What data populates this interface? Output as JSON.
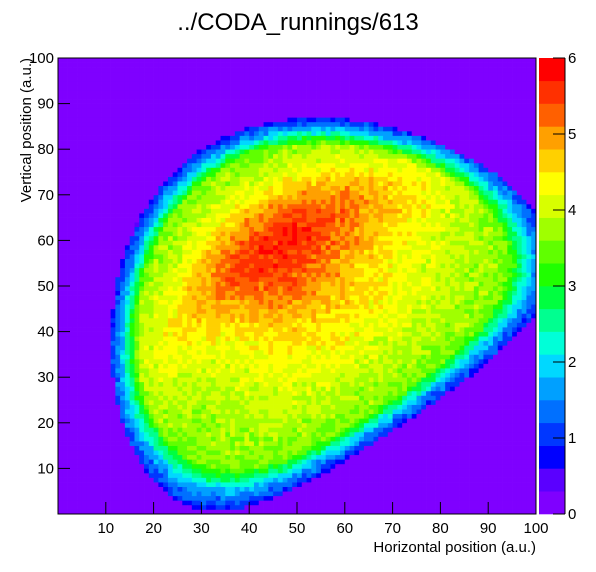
{
  "chart_data": {
    "type": "heatmap",
    "title": "../CODA_runnings/613",
    "xlabel": "Horizontal position (a.u.)",
    "ylabel": "Vertical position (a.u.)",
    "xlim": [
      0,
      100
    ],
    "ylim": [
      0,
      100
    ],
    "x_ticks": [
      10,
      20,
      30,
      40,
      50,
      60,
      70,
      80,
      90,
      100
    ],
    "y_ticks": [
      10,
      20,
      30,
      40,
      50,
      60,
      70,
      80,
      90,
      100
    ],
    "zlim": [
      0,
      6
    ],
    "z_ticks": [
      0,
      1,
      2,
      3,
      4,
      5,
      6
    ],
    "bins": [
      100,
      100
    ],
    "colorscale": [
      "#7f00ff",
      "#5a00ff",
      "#0000ff",
      "#0037ff",
      "#0070ff",
      "#00a0ff",
      "#00d8ff",
      "#00ffd8",
      "#00ff90",
      "#00ff40",
      "#20ff00",
      "#60ff00",
      "#a0ff00",
      "#d8ff00",
      "#ffff00",
      "#ffd000",
      "#ffa000",
      "#ff6000",
      "#ff3000",
      "#ff0000"
    ],
    "background_value_color": "#7f00ff",
    "beam_spot": {
      "shape": "kidney / curved ellipse, left-concave, tilted from upper-left to lower-right",
      "x_extent": [
        8,
        94
      ],
      "y_extent": [
        6,
        92
      ],
      "peak_region": "upper-center and right-center, values ~5",
      "plateau_value": 4.5,
      "edge_value": 2
    }
  }
}
